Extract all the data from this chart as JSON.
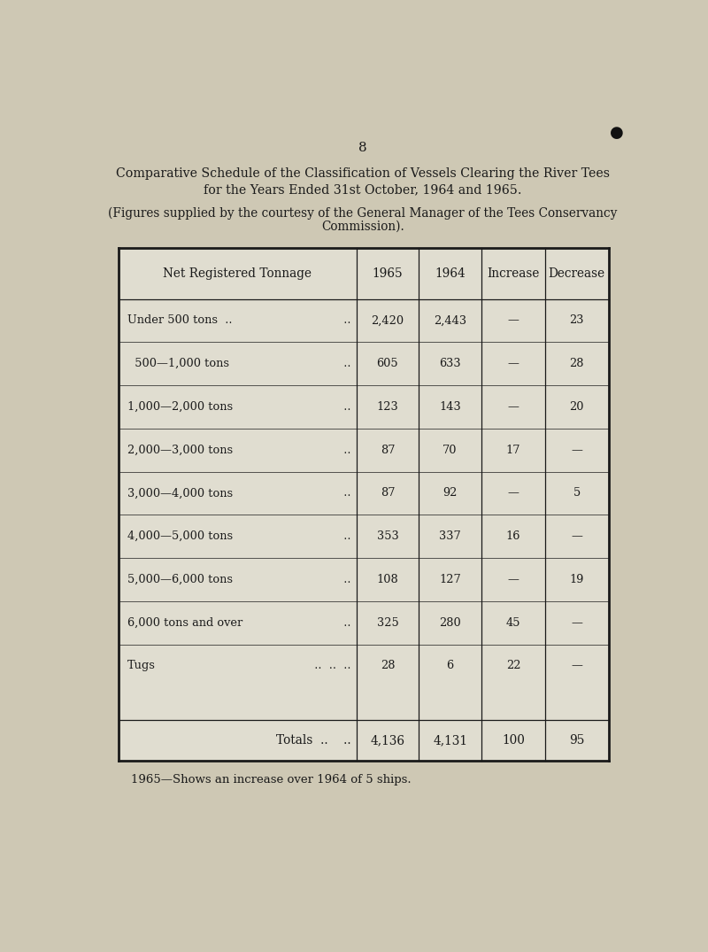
{
  "page_number": "8",
  "title_line1": "Comparative Schedule of the Classification of Vessels Clearing the River Tees",
  "title_line2": "for the Years Ended 31st October, 1964 and 1965.",
  "subtitle_line1": "(Figures supplied by the courtesy of the General Manager of the Tees Conservancy",
  "subtitle_line2": "Commission).",
  "footer_note": "1965—Shows an increase over 1964 of 5 ships.",
  "col_headers": [
    "Net Registered Tonnage",
    "1965",
    "1964",
    "Increase",
    "Decrease"
  ],
  "row_labels": [
    "Under 500 tons  ..",
    "  500—1,000 tons",
    "1,000—2,000 tons",
    "2,000—3,000 tons",
    "3,000—4,000 tons",
    "4,000—5,000 tons",
    "5,000—6,000 tons",
    "6,000 tons and over",
    "Tugs"
  ],
  "row_dots": [
    "  ..",
    "  ..",
    "  ..",
    "  ..",
    "  ..",
    "  ..",
    "  ..",
    "  ..",
    "  ..  ..  .."
  ],
  "rows": [
    [
      "2,420",
      "2,443",
      "—",
      "23"
    ],
    [
      "605",
      "633",
      "—",
      "28"
    ],
    [
      "123",
      "143",
      "—",
      "20"
    ],
    [
      "87",
      "70",
      "17",
      "—"
    ],
    [
      "87",
      "92",
      "—",
      "5"
    ],
    [
      "353",
      "337",
      "16",
      "—"
    ],
    [
      "108",
      "127",
      "—",
      "19"
    ],
    [
      "325",
      "280",
      "45",
      "—"
    ],
    [
      "28",
      "6",
      "22",
      "—"
    ]
  ],
  "totals_row": [
    "4,136",
    "4,131",
    "100",
    "95"
  ],
  "bg_color": "#cec8b4",
  "table_bg": "#e0ddd0",
  "text_color": "#1a1a1a",
  "bullet_color": "#111111"
}
